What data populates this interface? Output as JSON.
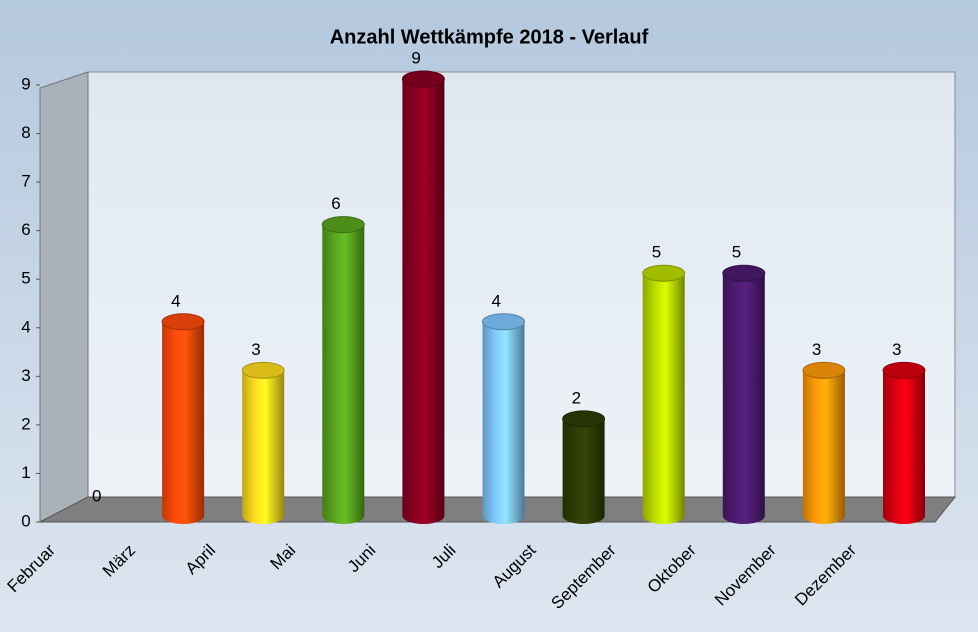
{
  "chart_data": {
    "type": "bar",
    "title": "Anzahl Wettkämpfe 2018 - Verlauf",
    "categories": [
      "Februar",
      "März",
      "April",
      "Mai",
      "Juni",
      "Juli",
      "August",
      "September",
      "Oktober",
      "November",
      "Dezember"
    ],
    "values": [
      0,
      4,
      3,
      6,
      9,
      4,
      2,
      5,
      5,
      3,
      3
    ],
    "colors": [
      null,
      "#ff4a0a",
      "#ffdc1e",
      "#5aa61e",
      "#8a0022",
      "#80c8ff",
      "#2f3c05",
      "#bede00",
      "#4d1b70",
      "#ff9a08",
      "#dc0010"
    ],
    "ylim": [
      0,
      9
    ],
    "yticks": [
      0,
      1,
      2,
      3,
      4,
      5,
      6,
      7,
      8,
      9
    ],
    "grid": false
  }
}
